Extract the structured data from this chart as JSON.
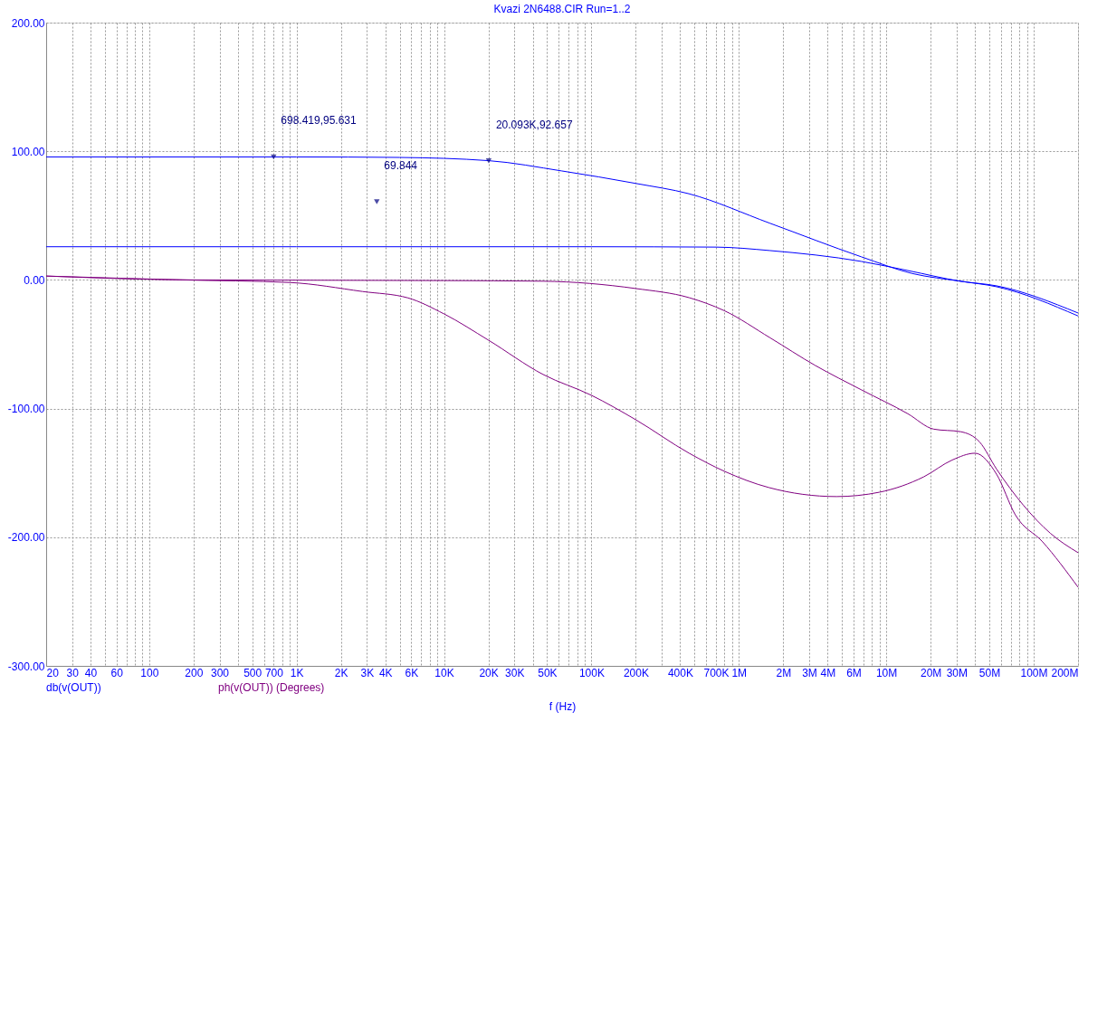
{
  "chart_data": {
    "type": "line",
    "title": "Kvazi 2N6488.CIR Run=1..2",
    "xlabel": "f (Hz)",
    "log": "x",
    "grid": true,
    "legend": "bottom left",
    "line_style": "solid",
    "marker": "none",
    "xlim": [
      20,
      200000000
    ],
    "ylim": [
      -300,
      200
    ],
    "yticks": [
      {
        "value": -300,
        "label": "-300.00"
      },
      {
        "value": -200,
        "label": "-200.00"
      },
      {
        "value": -100,
        "label": "-100.00"
      },
      {
        "value": 0,
        "label": "0.00"
      },
      {
        "value": 100,
        "label": "100.00"
      },
      {
        "value": 200,
        "label": "200.00"
      }
    ],
    "xticks": [
      {
        "value": 20,
        "label": "20"
      },
      {
        "value": 30,
        "label": "30"
      },
      {
        "value": 40,
        "label": "40"
      },
      {
        "value": 50,
        "label": null
      },
      {
        "value": 60,
        "label": "60"
      },
      {
        "value": 70,
        "label": null
      },
      {
        "value": 80,
        "label": null
      },
      {
        "value": 90,
        "label": null
      },
      {
        "value": 100,
        "label": "100"
      },
      {
        "value": 200,
        "label": "200"
      },
      {
        "value": 300,
        "label": "300"
      },
      {
        "value": 400,
        "label": null
      },
      {
        "value": 500,
        "label": "500"
      },
      {
        "value": 600,
        "label": null
      },
      {
        "value": 700,
        "label": "700"
      },
      {
        "value": 800,
        "label": null
      },
      {
        "value": 900,
        "label": null
      },
      {
        "value": 1000,
        "label": "1K"
      },
      {
        "value": 2000,
        "label": "2K"
      },
      {
        "value": 3000,
        "label": "3K"
      },
      {
        "value": 4000,
        "label": "4K"
      },
      {
        "value": 5000,
        "label": null
      },
      {
        "value": 6000,
        "label": "6K"
      },
      {
        "value": 7000,
        "label": null
      },
      {
        "value": 8000,
        "label": null
      },
      {
        "value": 9000,
        "label": null
      },
      {
        "value": 10000,
        "label": "10K"
      },
      {
        "value": 20000,
        "label": "20K"
      },
      {
        "value": 30000,
        "label": "30K"
      },
      {
        "value": 40000,
        "label": null
      },
      {
        "value": 50000,
        "label": "50K"
      },
      {
        "value": 60000,
        "label": null
      },
      {
        "value": 70000,
        "label": null
      },
      {
        "value": 80000,
        "label": null
      },
      {
        "value": 90000,
        "label": null
      },
      {
        "value": 100000,
        "label": "100K"
      },
      {
        "value": 200000,
        "label": "200K"
      },
      {
        "value": 300000,
        "label": null
      },
      {
        "value": 400000,
        "label": "400K"
      },
      {
        "value": 500000,
        "label": null
      },
      {
        "value": 600000,
        "label": null
      },
      {
        "value": 700000,
        "label": "700K"
      },
      {
        "value": 800000,
        "label": null
      },
      {
        "value": 900000,
        "label": null
      },
      {
        "value": 1000000,
        "label": "1M"
      },
      {
        "value": 2000000,
        "label": "2M"
      },
      {
        "value": 3000000,
        "label": "3M"
      },
      {
        "value": 4000000,
        "label": "4M"
      },
      {
        "value": 5000000,
        "label": null
      },
      {
        "value": 6000000,
        "label": "6M"
      },
      {
        "value": 7000000,
        "label": null
      },
      {
        "value": 8000000,
        "label": null
      },
      {
        "value": 9000000,
        "label": null
      },
      {
        "value": 10000000,
        "label": "10M"
      },
      {
        "value": 20000000,
        "label": "20M"
      },
      {
        "value": 30000000,
        "label": "30M"
      },
      {
        "value": 40000000,
        "label": null
      },
      {
        "value": 50000000,
        "label": "50M"
      },
      {
        "value": 60000000,
        "label": null
      },
      {
        "value": 70000000,
        "label": null
      },
      {
        "value": 80000000,
        "label": null
      },
      {
        "value": 90000000,
        "label": null
      },
      {
        "value": 100000000,
        "label": "100M"
      },
      {
        "value": 200000000,
        "label": "200M"
      }
    ],
    "series": [
      {
        "name": "db(v(OUT))",
        "color": "#0000ff",
        "x": [
          20,
          1000,
          5000,
          20093,
          63000,
          200000,
          458000,
          1630000,
          6760000,
          15000000,
          31800000,
          56000000,
          200000000
        ],
        "values": [
          95.6,
          95.6,
          95.2,
          92.7,
          84.7,
          75,
          67,
          44,
          18,
          5,
          -1,
          -5.3,
          -28
        ]
      },
      {
        "color": "#0000ff",
        "x": [
          20,
          1000,
          100000,
          700000,
          1630000,
          6760000,
          14000000,
          31800000,
          56000000,
          200000000
        ],
        "values": [
          25.8,
          25.8,
          25.8,
          25.5,
          22.8,
          14.4,
          7.3,
          -1,
          -4.6,
          -25.7
        ]
      },
      {
        "name": "ph(v(OUT)) (Degrees)",
        "color": "#800080",
        "x": [
          20,
          200,
          10000,
          47000,
          200000,
          460000,
          800000,
          1630000,
          3300000,
          6800000,
          14000000,
          21000000,
          32000000,
          43000000,
          56000000,
          85000000,
          130000000,
          200000000
        ],
        "values": [
          3,
          0,
          -0.5,
          -1,
          -6.7,
          -13.8,
          -24,
          -45,
          -66.5,
          -85.5,
          -104,
          -116,
          -118,
          -126,
          -147,
          -175,
          -197,
          -212
        ]
      },
      {
        "color": "#800080",
        "x": [
          20,
          167,
          900,
          2800,
          5700,
          10000,
          20000,
          47000,
          100000,
          200000,
          460000,
          800000,
          1600000,
          4600000,
          9000000,
          18000000,
          28000000,
          40000000,
          56000000,
          75000000,
          115000000,
          200000000
        ],
        "values": [
          3,
          0,
          -2,
          -9,
          -14,
          -26.4,
          -46.8,
          -73.5,
          -89.7,
          -108.7,
          -134.7,
          -148.8,
          -161.4,
          -168.4,
          -165,
          -153,
          -140,
          -134.7,
          -151,
          -182.5,
          -203.6,
          -238.8
        ]
      }
    ],
    "annotations": [
      {
        "text": "698.419,95.631",
        "x": 698.419,
        "y": 95.631
      },
      {
        "text": "20.093K,92.657",
        "x": 20093,
        "y": 92.657
      },
      {
        "text": "69.844",
        "x": 3500,
        "y": 60.7
      }
    ]
  }
}
